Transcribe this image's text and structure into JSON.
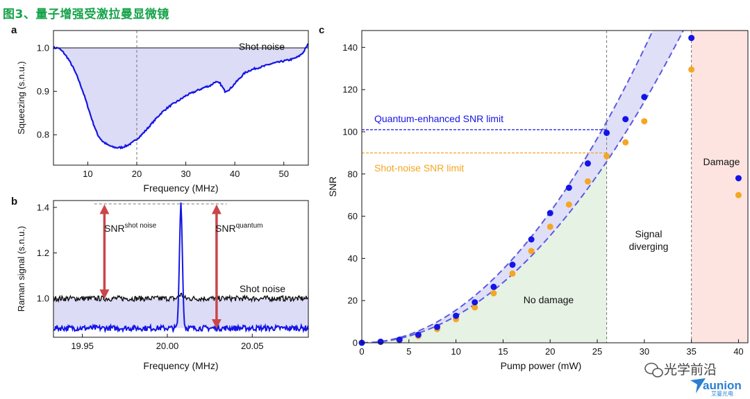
{
  "figure_title": "图3、量子增强受激拉曼显微镜",
  "watermark": {
    "account": "光学前沿",
    "brand": "aunion",
    "brand_sub": "艾曼光电"
  },
  "colors": {
    "blue": "#1414e6",
    "blue_fill": "#dcdcf7",
    "orange": "#f5a623",
    "green_fill": "#e6f2e3",
    "red_fill": "#fde4e1",
    "arrow": "#c9464b",
    "title": "#16a34a"
  },
  "chart_data": [
    {
      "panel": "a",
      "type": "area",
      "xlabel": "Frequency (MHz)",
      "ylabel": "Squeezing (s.n.u.)",
      "xlim": [
        3,
        55
      ],
      "ylim": [
        0.73,
        1.04
      ],
      "xticks": [
        10,
        20,
        30,
        40,
        50
      ],
      "yticks": [
        0.8,
        0.9,
        1.0
      ],
      "ytick_labels": [
        "0.8",
        "0.9",
        "1.0"
      ],
      "reference_line": {
        "y": 1.0,
        "label": "Shot noise"
      },
      "vline": 20,
      "series": [
        {
          "x": [
            3,
            4,
            5,
            6,
            7,
            8,
            9,
            10,
            11,
            12,
            13,
            14,
            15,
            16,
            17,
            18,
            19,
            20,
            21,
            22,
            23,
            24,
            25,
            26,
            27,
            28,
            29,
            30,
            31,
            32,
            33,
            34,
            35,
            36,
            37,
            38,
            39,
            40,
            41,
            42,
            43,
            44,
            45,
            46,
            47,
            48,
            49,
            50,
            51,
            52,
            53,
            54,
            55
          ],
          "values": [
            1.0,
            1.0,
            0.99,
            0.975,
            0.955,
            0.93,
            0.9,
            0.865,
            0.83,
            0.8,
            0.785,
            0.777,
            0.772,
            0.77,
            0.771,
            0.775,
            0.781,
            0.79,
            0.8,
            0.812,
            0.825,
            0.838,
            0.85,
            0.86,
            0.868,
            0.875,
            0.882,
            0.89,
            0.895,
            0.9,
            0.905,
            0.91,
            0.913,
            0.922,
            0.918,
            0.9,
            0.905,
            0.918,
            0.93,
            0.942,
            0.948,
            0.952,
            0.955,
            0.958,
            0.962,
            0.965,
            0.967,
            0.97,
            0.972,
            0.975,
            0.98,
            0.99,
            1.01
          ]
        }
      ]
    },
    {
      "panel": "b",
      "type": "line",
      "xlabel": "Frequency (MHz)",
      "ylabel": "Raman signal (s.n.u.)",
      "xlim": [
        19.933,
        20.083
      ],
      "ylim": [
        0.83,
        1.43
      ],
      "xticks": [
        19.95,
        20.0,
        20.05
      ],
      "xtick_labels": [
        "19.95",
        "20.00",
        "20.05"
      ],
      "yticks": [
        1.0,
        1.2,
        1.4
      ],
      "ytick_labels": [
        "1.0",
        "1.2",
        "1.4"
      ],
      "annotations": {
        "shot_noise_label": "Shot noise",
        "snr_left": {
          "base": "SNR",
          "sup": "shot noise"
        },
        "snr_right": {
          "base": "SNR",
          "sup": "quantum"
        }
      },
      "arrows": {
        "top": 1.41,
        "left_bottom": 1.0,
        "right_bottom": 0.87,
        "left_x": 19.963,
        "right_x": 20.029
      },
      "series": [
        {
          "name": "shot noise",
          "level": 1.0,
          "noise": 0.012,
          "color": "#111111"
        },
        {
          "name": "quantum",
          "level": 0.87,
          "noise": 0.012,
          "peak_x": 20.008,
          "peak_height": 1.42,
          "peak_width": 0.0012,
          "color": "#1414e6"
        }
      ]
    },
    {
      "panel": "c",
      "type": "scatter",
      "xlabel": "Pump power (mW)",
      "ylabel": "SNR",
      "xlim": [
        0,
        41
      ],
      "ylim": [
        0,
        148
      ],
      "xticks": [
        0,
        5,
        10,
        15,
        20,
        25,
        30,
        35,
        40
      ],
      "yticks": [
        0,
        20,
        40,
        60,
        80,
        100,
        120,
        140
      ],
      "regions": [
        {
          "label": "No damage",
          "from": 0,
          "to": 26
        },
        {
          "label": "Signal diverging",
          "from": 26,
          "to": 35
        },
        {
          "label": "Damage",
          "from": 35,
          "to": 41
        }
      ],
      "hlines": [
        {
          "y": 101,
          "label": "Quantum-enhanced SNR limit",
          "color": "#1414e6"
        },
        {
          "y": 90,
          "label": "Shot-noise SNR limit",
          "color": "#f5a623"
        }
      ],
      "vlines": [
        26,
        35
      ],
      "band": {
        "upper_coeff": 0.155,
        "lower_coeff": 0.127,
        "x_max": 36
      },
      "series": [
        {
          "name": "quantum",
          "color": "#1414e6",
          "x": [
            0,
            2,
            4,
            6,
            8,
            10,
            12,
            14,
            16,
            18,
            20,
            22,
            24,
            26,
            28,
            30,
            35,
            40
          ],
          "values": [
            0,
            0.5,
            1.5,
            3.8,
            7.5,
            12.8,
            19.2,
            26.5,
            37,
            49,
            61.5,
            73.5,
            85,
            99.5,
            106,
            116.5,
            144.5,
            78
          ]
        },
        {
          "name": "shot noise",
          "color": "#f5a623",
          "x": [
            0,
            2,
            4,
            6,
            8,
            10,
            12,
            14,
            16,
            18,
            20,
            22,
            24,
            26,
            28,
            30,
            35,
            40
          ],
          "values": [
            0,
            0.4,
            1.2,
            3.2,
            6.5,
            11.2,
            16.8,
            23.5,
            32.8,
            43.5,
            55,
            65.5,
            76.5,
            88.5,
            95,
            105,
            129.5,
            70
          ]
        }
      ]
    }
  ]
}
